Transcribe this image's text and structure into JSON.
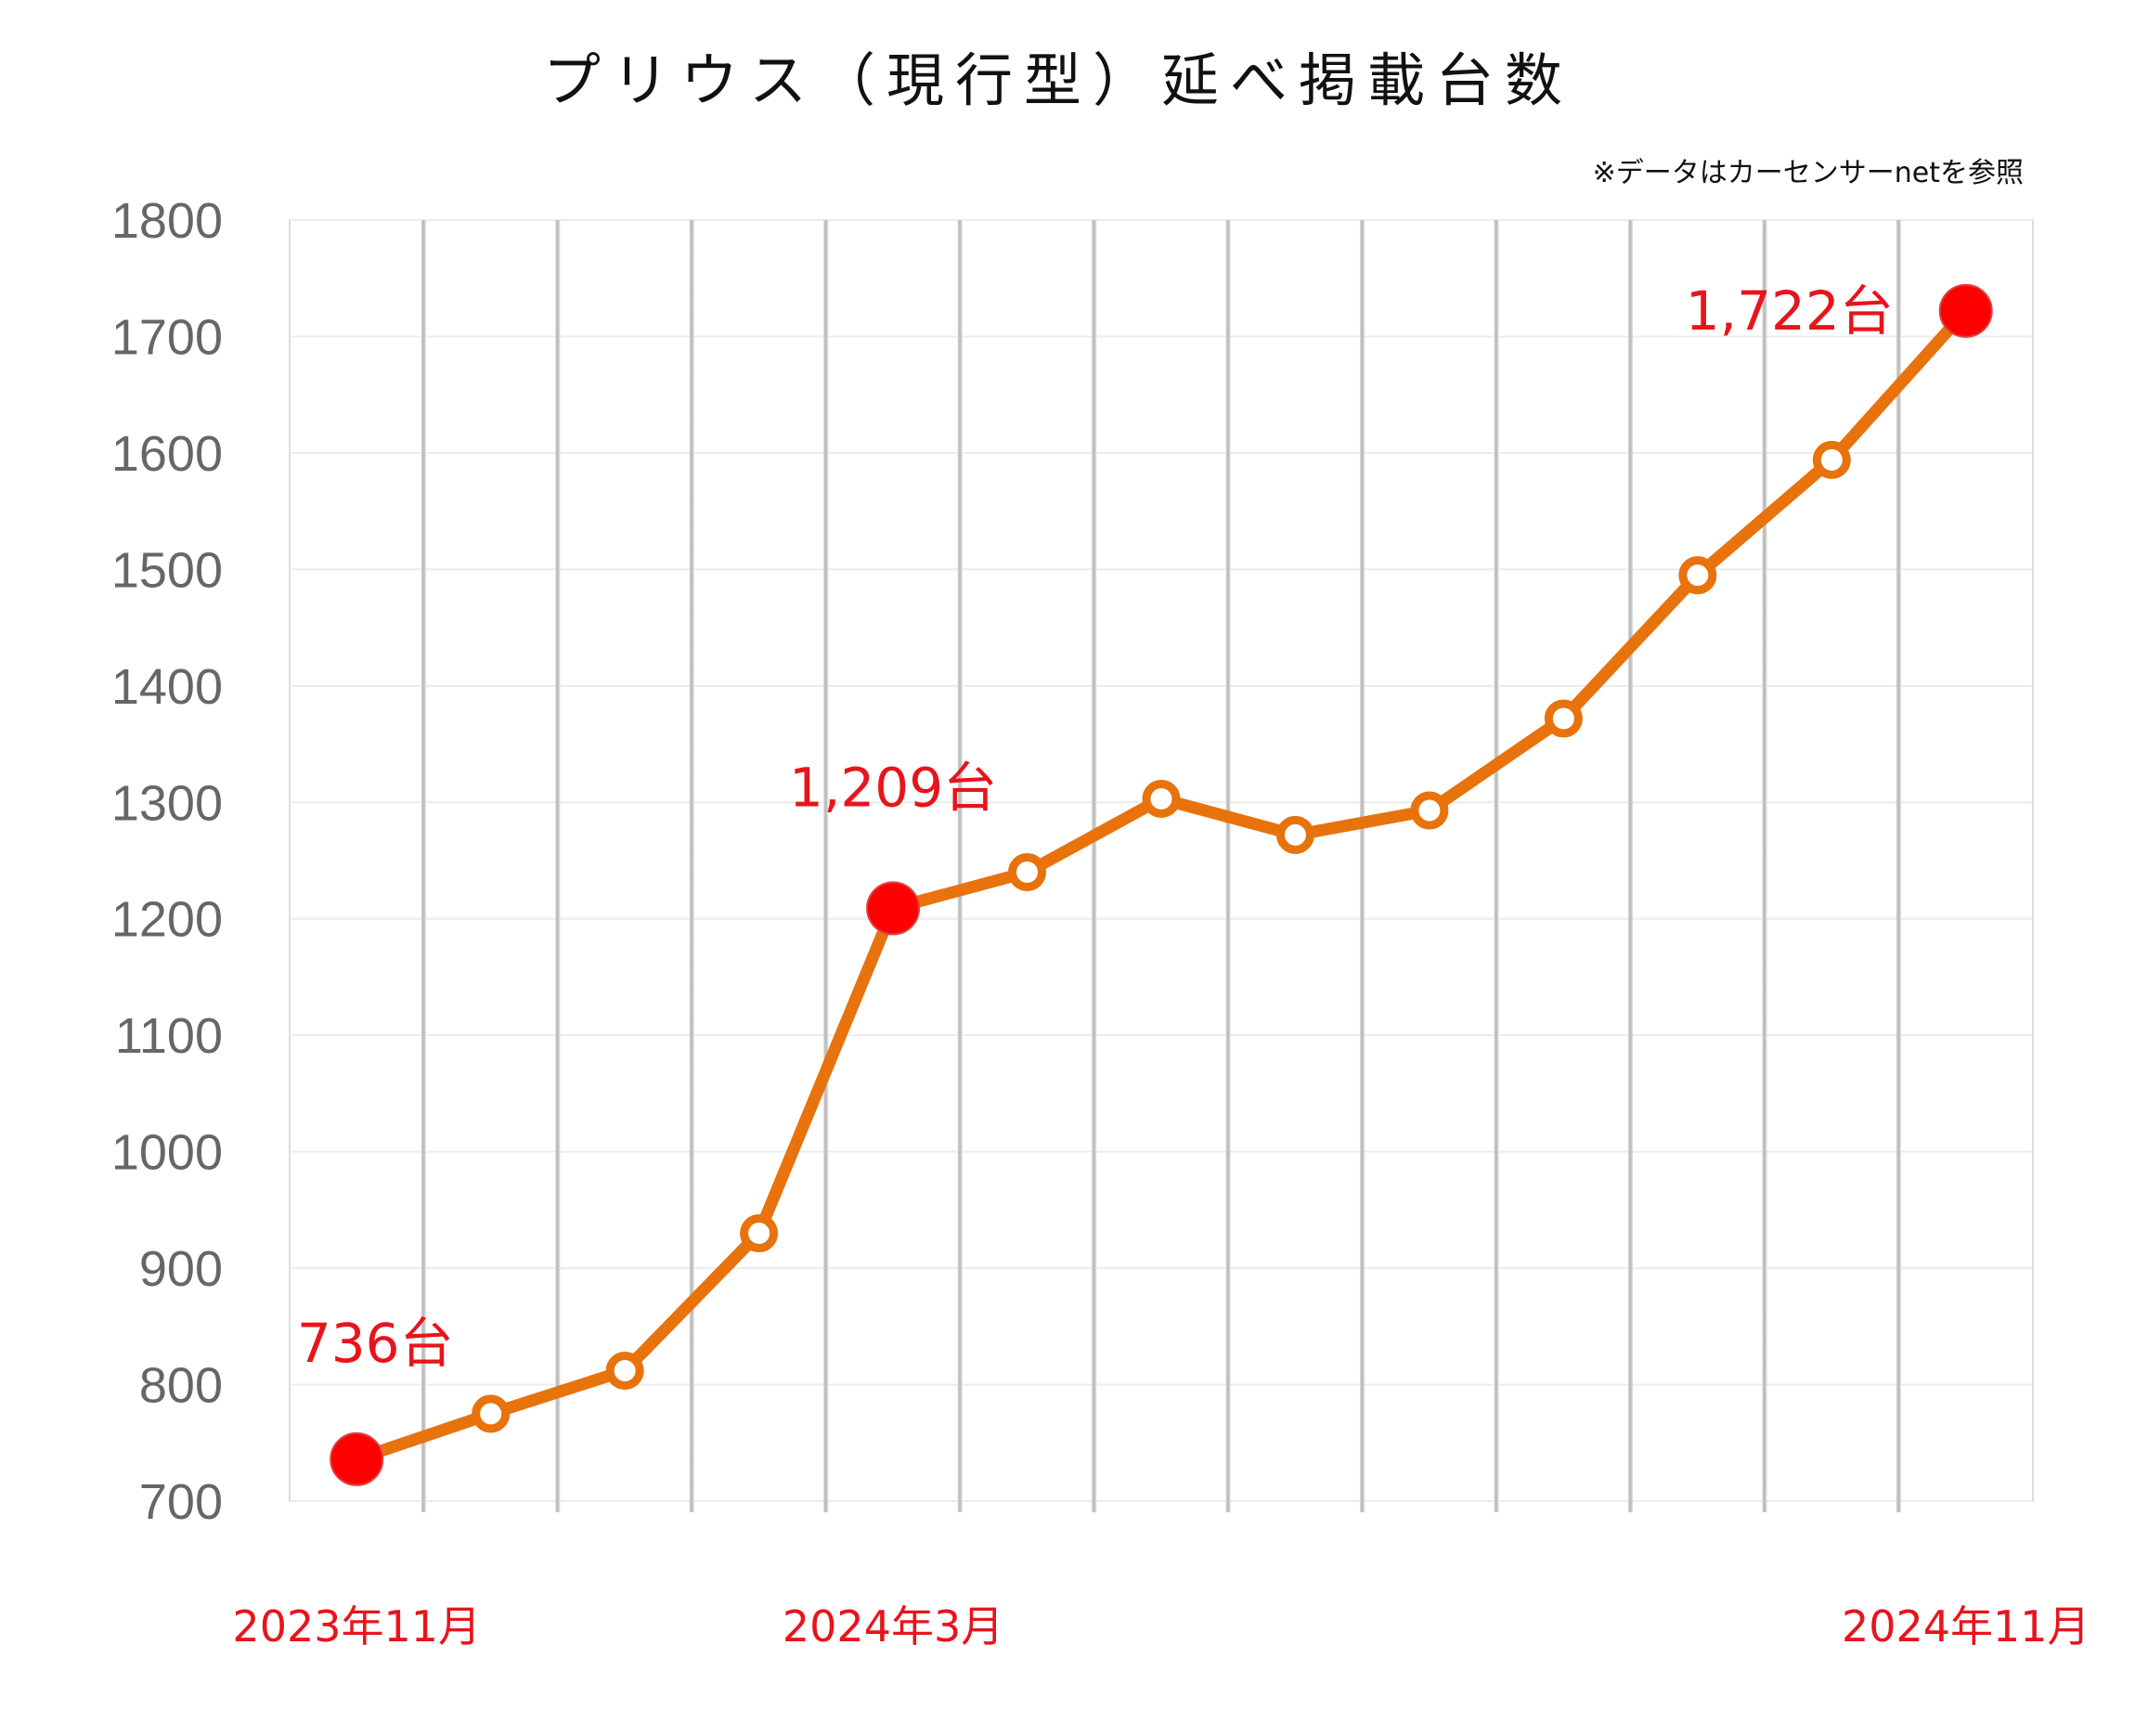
{
  "chart_data": {
    "type": "line",
    "title": "プリウス（現行型）延べ掲載台数",
    "source_note": "※データはカーセンサーnetを参照",
    "xlabel": "",
    "ylabel": "",
    "ylim": [
      700,
      1800
    ],
    "yticks": [
      1800,
      1700,
      1600,
      1500,
      1400,
      1300,
      1200,
      1100,
      1000,
      900,
      800,
      700
    ],
    "grid": true,
    "series": [
      {
        "values": [
          736,
          775,
          812,
          930,
          1209,
          1240,
          1303,
          1272,
          1293,
          1372,
          1495,
          1594,
          1722
        ]
      }
    ],
    "x_labels": [
      {
        "index": 0,
        "text": "2023年11月"
      },
      {
        "index": 4,
        "text": "2024年3月"
      },
      {
        "index": 12,
        "text": "2024年11月"
      }
    ],
    "highlighted": [
      {
        "index": 0,
        "label": "736台"
      },
      {
        "index": 4,
        "label": "1,209台"
      },
      {
        "index": 12,
        "label": "1,722台"
      }
    ],
    "colors": {
      "line": "#e8720c",
      "highlight": "#ff0000",
      "label": "#e8141b",
      "grid": "#cccccc"
    }
  }
}
